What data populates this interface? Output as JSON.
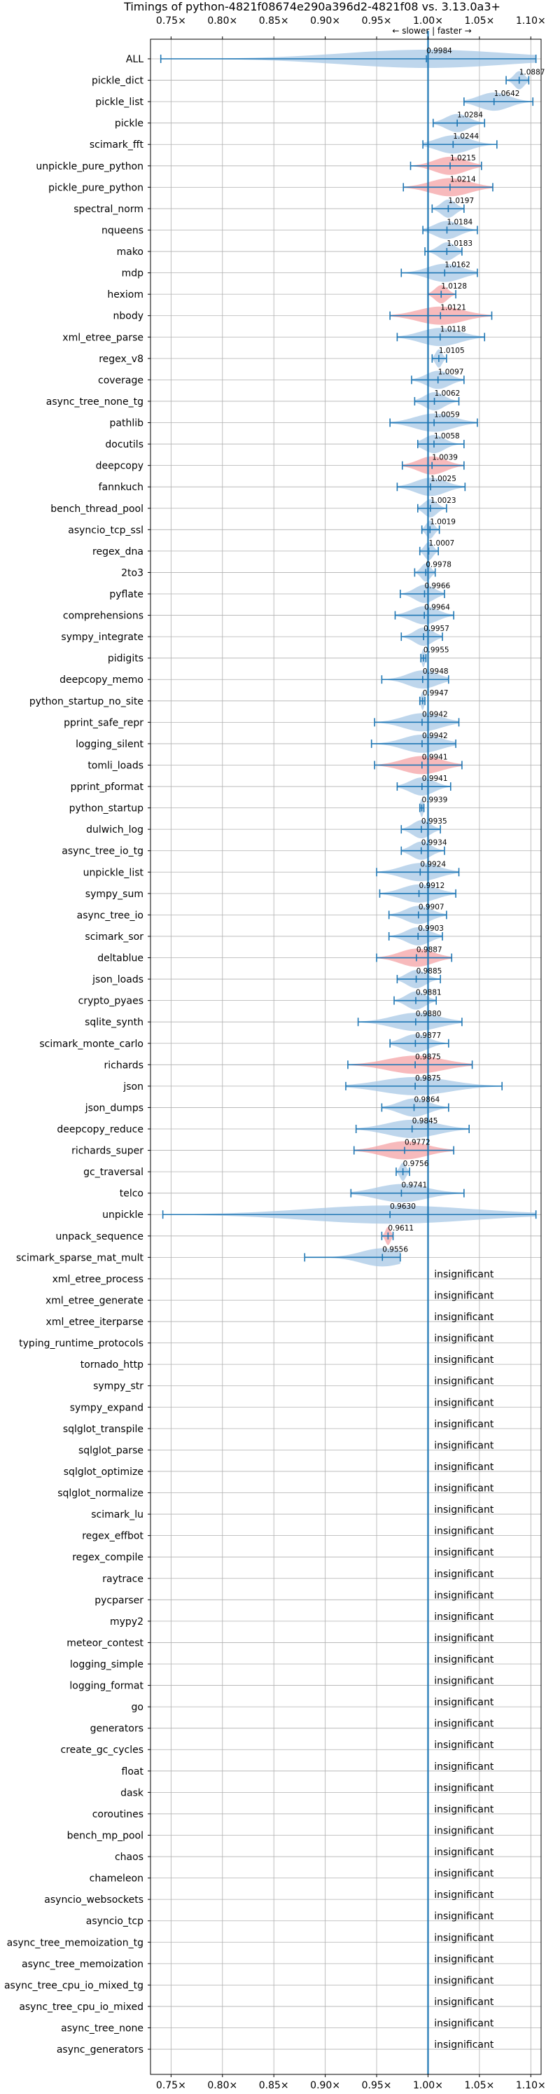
{
  "chart_data": {
    "type": "violin",
    "title": "Timings of python-4821f08674e290a396d2-4821f08 vs. 3.13.0a3+",
    "direction_label": "← slower | faster →",
    "x_ticks": [
      0.75,
      0.8,
      0.85,
      0.9,
      0.95,
      1.0,
      1.05,
      1.1
    ],
    "x_tick_labels": [
      "0.75×",
      "0.80×",
      "0.85×",
      "0.90×",
      "0.95×",
      "1.00×",
      "1.05×",
      "1.10×"
    ],
    "xlim": [
      0.73,
      1.11
    ],
    "reference_line": 1.0,
    "insignificant_label": "insignificant",
    "colors": {
      "faster": "#a8c8e6",
      "slower": "#f4a3a6",
      "line": "#1f77b4",
      "grid": "#b0b0b0"
    },
    "benchmarks": [
      {
        "name": "ALL",
        "mean": 0.9984,
        "min": 0.74,
        "max": 1.105,
        "color": "faster"
      },
      {
        "name": "pickle_dict",
        "mean": 1.0887,
        "min": 1.076,
        "max": 1.098,
        "color": "faster"
      },
      {
        "name": "pickle_list",
        "mean": 1.0642,
        "min": 1.035,
        "max": 1.102,
        "color": "faster"
      },
      {
        "name": "pickle",
        "mean": 1.0284,
        "min": 1.005,
        "max": 1.055,
        "color": "faster"
      },
      {
        "name": "scimark_fft",
        "mean": 1.0244,
        "min": 0.995,
        "max": 1.067,
        "color": "faster"
      },
      {
        "name": "unpickle_pure_python",
        "mean": 1.0215,
        "min": 0.983,
        "max": 1.052,
        "color": "slower"
      },
      {
        "name": "pickle_pure_python",
        "mean": 1.0214,
        "min": 0.976,
        "max": 1.063,
        "color": "slower"
      },
      {
        "name": "spectral_norm",
        "mean": 1.0197,
        "min": 1.004,
        "max": 1.035,
        "color": "faster"
      },
      {
        "name": "nqueens",
        "mean": 1.0184,
        "min": 0.995,
        "max": 1.048,
        "color": "faster"
      },
      {
        "name": "mako",
        "mean": 1.0183,
        "min": 0.997,
        "max": 1.033,
        "color": "faster"
      },
      {
        "name": "mdp",
        "mean": 1.0162,
        "min": 0.974,
        "max": 1.048,
        "color": "faster"
      },
      {
        "name": "hexiom",
        "mean": 1.0128,
        "min": 1.0,
        "max": 1.027,
        "color": "slower"
      },
      {
        "name": "nbody",
        "mean": 1.0121,
        "min": 0.963,
        "max": 1.062,
        "color": "slower"
      },
      {
        "name": "xml_etree_parse",
        "mean": 1.0118,
        "min": 0.97,
        "max": 1.055,
        "color": "faster"
      },
      {
        "name": "regex_v8",
        "mean": 1.0105,
        "min": 1.004,
        "max": 1.018,
        "color": "faster"
      },
      {
        "name": "coverage",
        "mean": 1.0097,
        "min": 0.984,
        "max": 1.035,
        "color": "faster"
      },
      {
        "name": "async_tree_none_tg",
        "mean": 1.0062,
        "min": 0.987,
        "max": 1.03,
        "color": "faster"
      },
      {
        "name": "pathlib",
        "mean": 1.0059,
        "min": 0.963,
        "max": 1.048,
        "color": "faster"
      },
      {
        "name": "docutils",
        "mean": 1.0058,
        "min": 0.99,
        "max": 1.035,
        "color": "faster"
      },
      {
        "name": "deepcopy",
        "mean": 1.0039,
        "min": 0.975,
        "max": 1.035,
        "color": "slower"
      },
      {
        "name": "fannkuch",
        "mean": 1.0025,
        "min": 0.97,
        "max": 1.036,
        "color": "faster"
      },
      {
        "name": "bench_thread_pool",
        "mean": 1.0023,
        "min": 0.99,
        "max": 1.018,
        "color": "faster"
      },
      {
        "name": "asyncio_tcp_ssl",
        "mean": 1.0019,
        "min": 0.994,
        "max": 1.011,
        "color": "faster"
      },
      {
        "name": "regex_dna",
        "mean": 1.0007,
        "min": 0.992,
        "max": 1.01,
        "color": "faster"
      },
      {
        "name": "2to3",
        "mean": 0.9978,
        "min": 0.987,
        "max": 1.007,
        "color": "faster"
      },
      {
        "name": "pyflate",
        "mean": 0.9966,
        "min": 0.973,
        "max": 1.016,
        "color": "faster"
      },
      {
        "name": "comprehensions",
        "mean": 0.9964,
        "min": 0.968,
        "max": 1.025,
        "color": "faster"
      },
      {
        "name": "sympy_integrate",
        "mean": 0.9957,
        "min": 0.974,
        "max": 1.014,
        "color": "faster"
      },
      {
        "name": "pidigits",
        "mean": 0.9955,
        "min": 0.993,
        "max": 0.998,
        "color": "faster"
      },
      {
        "name": "deepcopy_memo",
        "mean": 0.9948,
        "min": 0.955,
        "max": 1.02,
        "color": "faster"
      },
      {
        "name": "python_startup_no_site",
        "mean": 0.9947,
        "min": 0.992,
        "max": 0.997,
        "color": "faster"
      },
      {
        "name": "pprint_safe_repr",
        "mean": 0.9942,
        "min": 0.948,
        "max": 1.03,
        "color": "faster"
      },
      {
        "name": "logging_silent",
        "mean": 0.9942,
        "min": 0.945,
        "max": 1.027,
        "color": "faster"
      },
      {
        "name": "tomli_loads",
        "mean": 0.9941,
        "min": 0.948,
        "max": 1.033,
        "color": "slower"
      },
      {
        "name": "pprint_pformat",
        "mean": 0.9941,
        "min": 0.97,
        "max": 1.022,
        "color": "faster"
      },
      {
        "name": "python_startup",
        "mean": 0.9939,
        "min": 0.992,
        "max": 0.996,
        "color": "faster"
      },
      {
        "name": "dulwich_log",
        "mean": 0.9935,
        "min": 0.974,
        "max": 1.012,
        "color": "faster"
      },
      {
        "name": "async_tree_io_tg",
        "mean": 0.9934,
        "min": 0.974,
        "max": 1.016,
        "color": "faster"
      },
      {
        "name": "unpickle_list",
        "mean": 0.9924,
        "min": 0.95,
        "max": 1.03,
        "color": "faster"
      },
      {
        "name": "sympy_sum",
        "mean": 0.9912,
        "min": 0.953,
        "max": 1.027,
        "color": "faster"
      },
      {
        "name": "async_tree_io",
        "mean": 0.9907,
        "min": 0.962,
        "max": 1.018,
        "color": "faster"
      },
      {
        "name": "scimark_sor",
        "mean": 0.9903,
        "min": 0.962,
        "max": 1.014,
        "color": "faster"
      },
      {
        "name": "deltablue",
        "mean": 0.9887,
        "min": 0.95,
        "max": 1.023,
        "color": "slower"
      },
      {
        "name": "json_loads",
        "mean": 0.9885,
        "min": 0.97,
        "max": 1.012,
        "color": "faster"
      },
      {
        "name": "crypto_pyaes",
        "mean": 0.9881,
        "min": 0.967,
        "max": 1.008,
        "color": "faster"
      },
      {
        "name": "sqlite_synth",
        "mean": 0.988,
        "min": 0.932,
        "max": 1.033,
        "color": "faster"
      },
      {
        "name": "scimark_monte_carlo",
        "mean": 0.9877,
        "min": 0.963,
        "max": 1.02,
        "color": "faster"
      },
      {
        "name": "richards",
        "mean": 0.9875,
        "min": 0.922,
        "max": 1.043,
        "color": "slower"
      },
      {
        "name": "json",
        "mean": 0.9875,
        "min": 0.92,
        "max": 1.072,
        "color": "faster"
      },
      {
        "name": "json_dumps",
        "mean": 0.9864,
        "min": 0.955,
        "max": 1.02,
        "color": "faster"
      },
      {
        "name": "deepcopy_reduce",
        "mean": 0.9845,
        "min": 0.93,
        "max": 1.04,
        "color": "faster"
      },
      {
        "name": "richards_super",
        "mean": 0.9772,
        "min": 0.928,
        "max": 1.025,
        "color": "slower"
      },
      {
        "name": "gc_traversal",
        "mean": 0.9756,
        "min": 0.969,
        "max": 0.982,
        "color": "faster"
      },
      {
        "name": "telco",
        "mean": 0.9741,
        "min": 0.925,
        "max": 1.035,
        "color": "faster"
      },
      {
        "name": "unpickle",
        "mean": 0.963,
        "min": 0.742,
        "max": 1.105,
        "color": "faster"
      },
      {
        "name": "unpack_sequence",
        "mean": 0.9611,
        "min": 0.955,
        "max": 0.966,
        "color": "slower"
      },
      {
        "name": "scimark_sparse_mat_mult",
        "mean": 0.9556,
        "min": 0.88,
        "max": 0.973,
        "color": "faster"
      },
      {
        "name": "xml_etree_process",
        "insignificant": true
      },
      {
        "name": "xml_etree_generate",
        "insignificant": true
      },
      {
        "name": "xml_etree_iterparse",
        "insignificant": true
      },
      {
        "name": "typing_runtime_protocols",
        "insignificant": true
      },
      {
        "name": "tornado_http",
        "insignificant": true
      },
      {
        "name": "sympy_str",
        "insignificant": true
      },
      {
        "name": "sympy_expand",
        "insignificant": true
      },
      {
        "name": "sqlglot_transpile",
        "insignificant": true
      },
      {
        "name": "sqlglot_parse",
        "insignificant": true
      },
      {
        "name": "sqlglot_optimize",
        "insignificant": true
      },
      {
        "name": "sqlglot_normalize",
        "insignificant": true
      },
      {
        "name": "scimark_lu",
        "insignificant": true
      },
      {
        "name": "regex_effbot",
        "insignificant": true
      },
      {
        "name": "regex_compile",
        "insignificant": true
      },
      {
        "name": "raytrace",
        "insignificant": true
      },
      {
        "name": "pycparser",
        "insignificant": true
      },
      {
        "name": "mypy2",
        "insignificant": true
      },
      {
        "name": "meteor_contest",
        "insignificant": true
      },
      {
        "name": "logging_simple",
        "insignificant": true
      },
      {
        "name": "logging_format",
        "insignificant": true
      },
      {
        "name": "go",
        "insignificant": true
      },
      {
        "name": "generators",
        "insignificant": true
      },
      {
        "name": "create_gc_cycles",
        "insignificant": true
      },
      {
        "name": "float",
        "insignificant": true
      },
      {
        "name": "dask",
        "insignificant": true
      },
      {
        "name": "coroutines",
        "insignificant": true
      },
      {
        "name": "bench_mp_pool",
        "insignificant": true
      },
      {
        "name": "chaos",
        "insignificant": true
      },
      {
        "name": "chameleon",
        "insignificant": true
      },
      {
        "name": "asyncio_websockets",
        "insignificant": true
      },
      {
        "name": "asyncio_tcp",
        "insignificant": true
      },
      {
        "name": "async_tree_memoization_tg",
        "insignificant": true
      },
      {
        "name": "async_tree_memoization",
        "insignificant": true
      },
      {
        "name": "async_tree_cpu_io_mixed_tg",
        "insignificant": true
      },
      {
        "name": "async_tree_cpu_io_mixed",
        "insignificant": true
      },
      {
        "name": "async_tree_none",
        "insignificant": true
      },
      {
        "name": "async_generators",
        "insignificant": true
      }
    ]
  }
}
